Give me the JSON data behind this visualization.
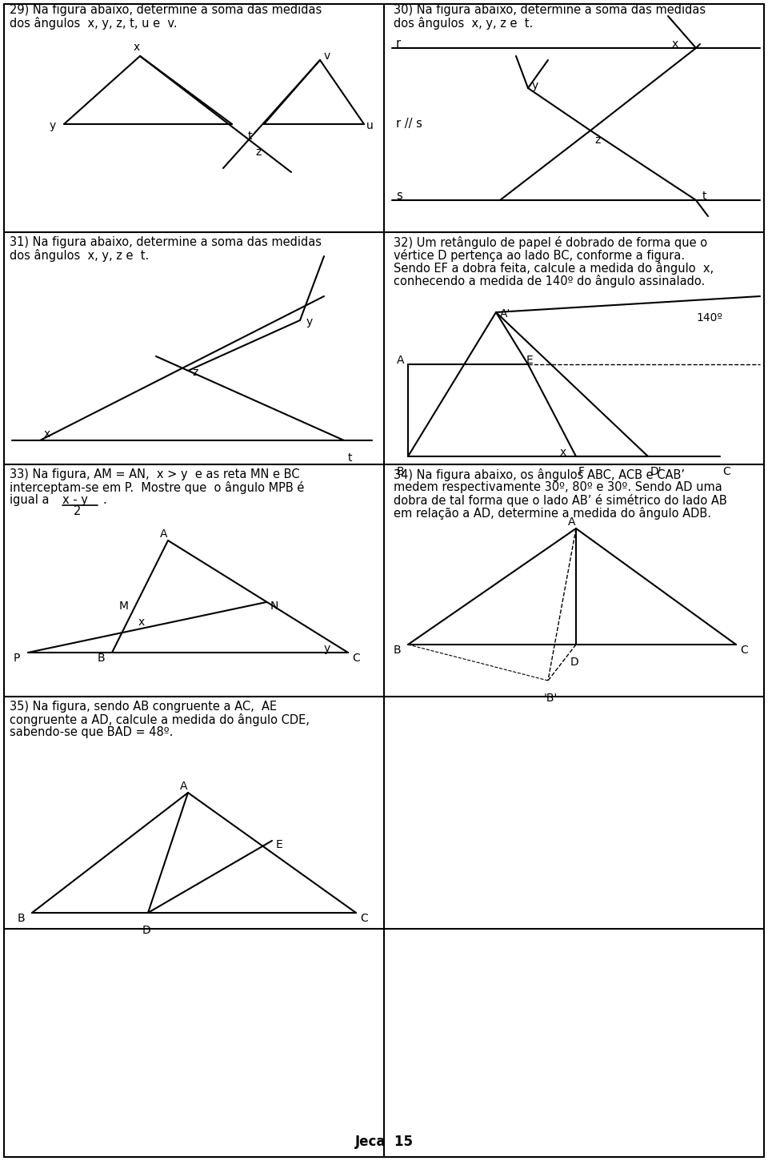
{
  "bg_color": "#ffffff",
  "title": "Jeca  15",
  "p29_text": [
    "29) Na figura abaixo, determine a soma das medidas",
    "dos ângulos  x, y, z, t, u e  v."
  ],
  "p30_text": [
    "30) Na figura abaixo, determine a soma das medidas",
    "dos ângulos  x, y, z e  t."
  ],
  "p31_text": [
    "31) Na figura abaixo, determine a soma das medidas",
    "dos ângulos  x, y, z e  t."
  ],
  "p32_text": [
    "32) Um retângulo de papel é dobrado de forma que o",
    "vértice D pertença ao lado BC, conforme a figura.",
    "Sendo EF a dobra feita, calcule a medida do ângulo  x,",
    "conhecendo a medida de 140º do ângulo assinalado."
  ],
  "p33_text": [
    "33) Na figura, AM = AN,  x > y  e as reta MN e BC",
    "interceptam-se em P.  Mostre que  o ângulo MPB é",
    "igual a"
  ],
  "p34_text": [
    "34) Na figura abaixo, os ângulos ABC, ACB e CAB’",
    "medem respectivamente 30º, 80º e 30º. Sendo AD uma",
    "dobra de tal forma que o lado AB’ é simétrico do lado AB",
    "em relação a AD, determine a medida do ângulo ADB."
  ],
  "p35_text": [
    "35) Na figura, sendo AB congruente a AC,  AE",
    "congruente a AD, calcule a medida do ângulo CDE,",
    "sabendo-se que BAD = 48º."
  ]
}
